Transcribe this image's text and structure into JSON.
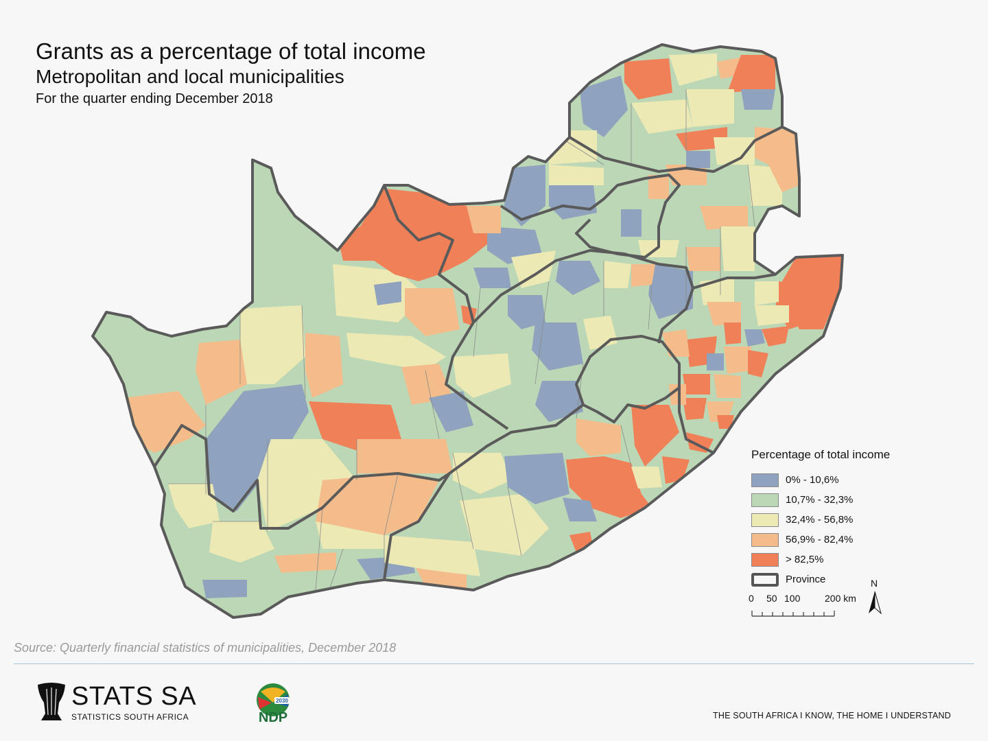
{
  "title": "Grants as a percentage of total income",
  "subtitle": "Metropolitan and local municipalities",
  "period": "For the quarter ending December 2018",
  "legend": {
    "title": "Percentage of total income",
    "classes": [
      {
        "label": "0% - 10,6%",
        "color": "#8fa3be"
      },
      {
        "label": "10,7% - 32,3%",
        "color": "#bcd7b5"
      },
      {
        "label": "32,4% - 56,8%",
        "color": "#ece9b4"
      },
      {
        "label": "56,9% - 82,4%",
        "color": "#f4bc8a"
      },
      {
        "label": "> 82,5%",
        "color": "#ef8057"
      }
    ],
    "province_label": "Province"
  },
  "scale": {
    "ticks": [
      "0",
      "50",
      "100",
      "200 km"
    ]
  },
  "north_label": "N",
  "source": "Source: Quarterly financial statistics of municipalities, December 2018",
  "logos": {
    "stats_name": "STATS SA",
    "stats_sub": "STATISTICS SOUTH AFRICA",
    "ndp_year": "2030",
    "ndp_text": "NDP"
  },
  "tagline": "THE SOUTH AFRICA I KNOW, THE HOME I UNDERSTAND"
}
